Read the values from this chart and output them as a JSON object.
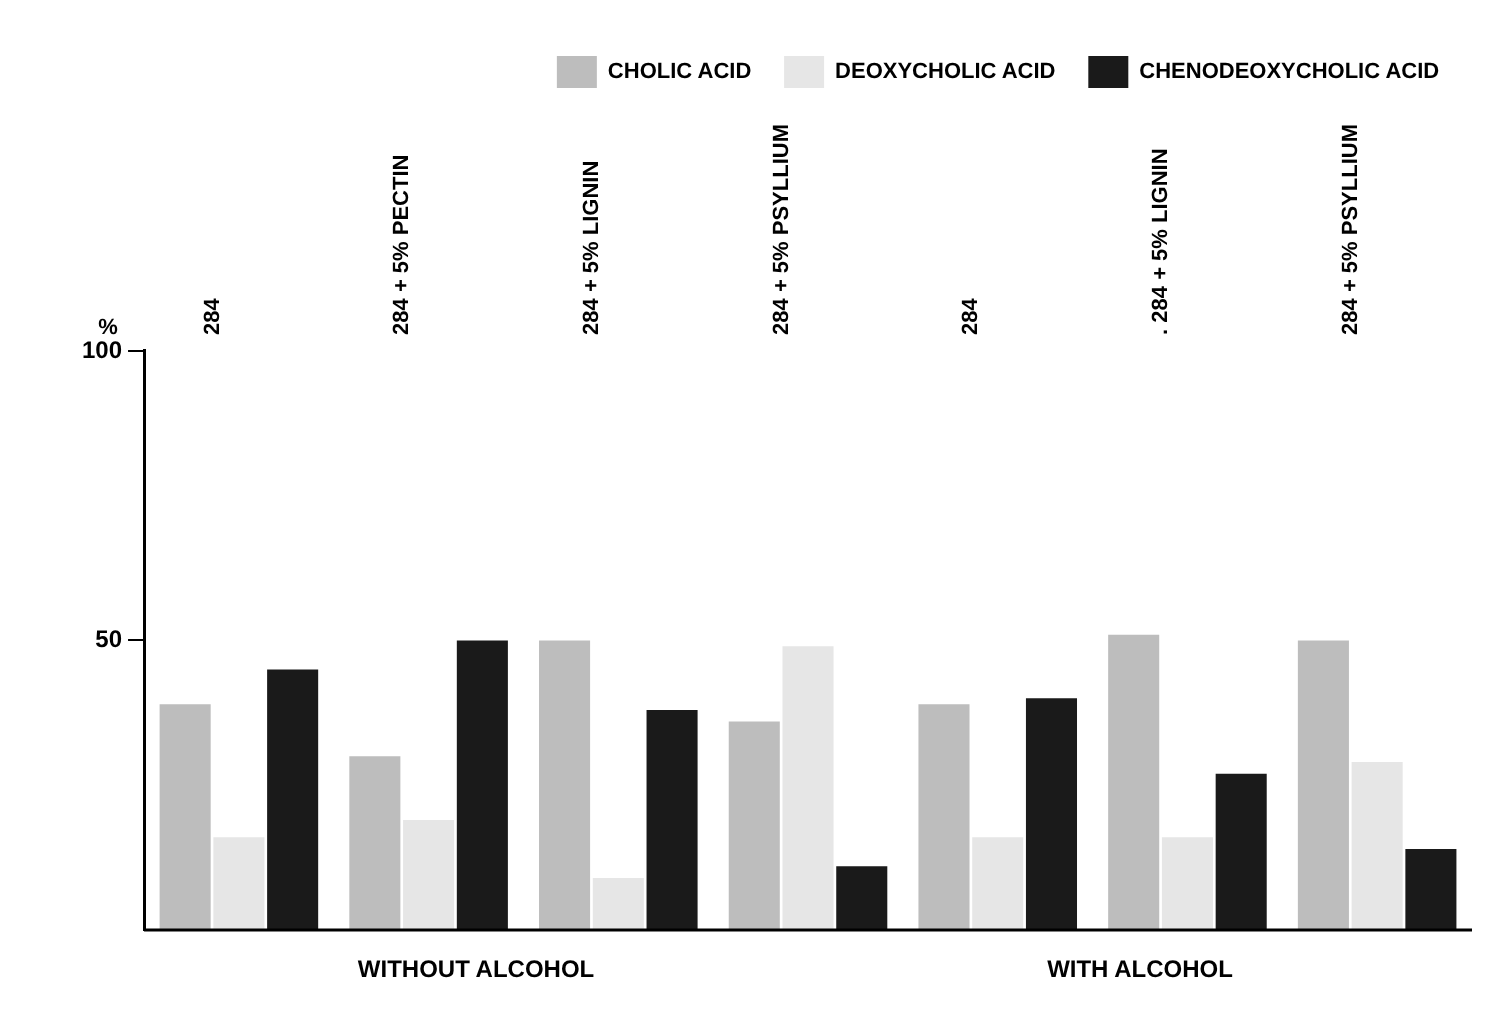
{
  "chart_data": {
    "type": "bar",
    "categories": [
      "284",
      "284 + 5% PECTIN",
      "284 + 5% LIGNIN",
      "284 + 5% PSYLLIUM",
      "284",
      ". 284 + 5% LIGNIN",
      "284 + 5% PSYLLIUM"
    ],
    "series": [
      {
        "name": "CHOLIC ACID",
        "color": "#bdbdbd",
        "values": [
          39,
          30,
          50,
          36,
          39,
          51,
          50
        ]
      },
      {
        "name": "DEOXYCHOLIC ACID",
        "color": "#e6e6e6",
        "values": [
          16,
          19,
          9,
          49,
          16,
          16,
          29
        ]
      },
      {
        "name": "CHENODEOXYCHOLIC ACID",
        "color": "#1a1a1a",
        "values": [
          45,
          50,
          38,
          11,
          40,
          27,
          14
        ]
      }
    ],
    "ylabel": "%",
    "ylim": [
      0,
      100
    ],
    "yticks": [
      50,
      100
    ],
    "grid": false,
    "legend": "top right",
    "annotations": [
      "WITHOUT ALCOHOL",
      "WITH ALCOHOL"
    ]
  }
}
